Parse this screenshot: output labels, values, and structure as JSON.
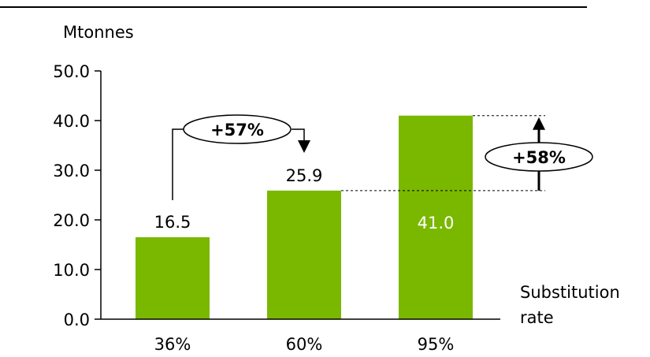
{
  "chart_data": {
    "type": "bar",
    "ylabel": "Mtonnes",
    "xlabel": "Substitution rate",
    "xlabel_lines": [
      "Substitution",
      "rate"
    ],
    "categories": [
      "36%",
      "60%",
      "95%"
    ],
    "values": [
      16.5,
      25.9,
      41.0
    ],
    "data_labels": [
      "16.5",
      "25.9",
      "41.0"
    ],
    "yticks": [
      "0.0",
      "10.0",
      "20.0",
      "30.0",
      "40.0",
      "50.0"
    ],
    "ylim": [
      0,
      50
    ],
    "grid": false,
    "bar_color": "#7ab800",
    "annotations": {
      "growth_first": "+57%",
      "growth_second": "+58%"
    }
  }
}
